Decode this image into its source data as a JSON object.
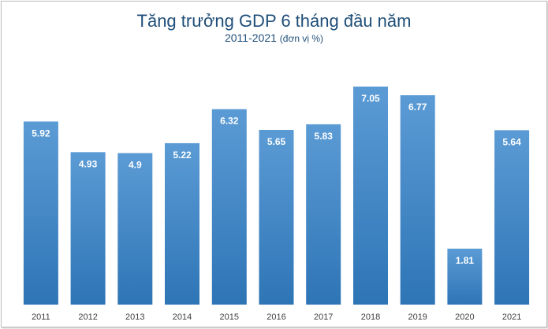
{
  "chart_data": {
    "type": "bar",
    "title": "Tăng trưởng GDP 6 tháng đầu năm",
    "subtitle_years": "2011-2021",
    "subtitle_unit": "(đơn vị %)",
    "categories": [
      "2011",
      "2012",
      "2013",
      "2014",
      "2015",
      "2016",
      "2017",
      "2018",
      "2019",
      "2020",
      "2021"
    ],
    "values": [
      5.92,
      4.93,
      4.9,
      5.22,
      6.32,
      5.65,
      5.83,
      7.05,
      6.77,
      1.81,
      5.64
    ],
    "value_labels": [
      "5.92",
      "4.93",
      "4.9",
      "5.22",
      "6.32",
      "5.65",
      "5.83",
      "7.05",
      "6.77",
      "1.81",
      "5.64"
    ],
    "ylim": [
      0,
      7.05
    ],
    "grid": false,
    "bar_color_top": "#5b9bd5",
    "bar_color_bottom": "#2e75b6",
    "label_color": "#ffffff"
  }
}
